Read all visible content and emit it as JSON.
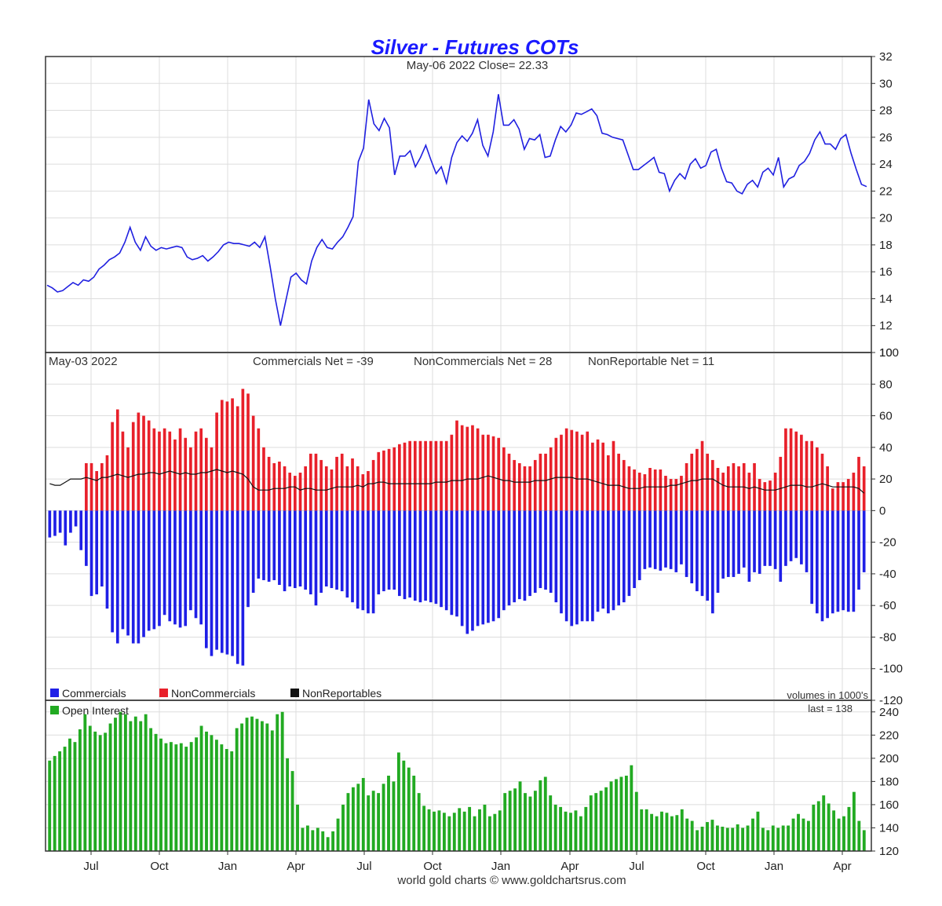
{
  "title": "Silver - Futures COTs",
  "footer": "world gold charts © www.goldchartsrus.com",
  "colors": {
    "price": "#2020e0",
    "commercials": "#1f1fe6",
    "noncommercials": "#e8202a",
    "nonreportables": "#111111",
    "open_interest": "#22aa22",
    "title": "#1a1aff"
  },
  "x_axis": {
    "labels": [
      "Jul",
      "Oct",
      "Jan",
      "Apr",
      "Jul",
      "Oct",
      "Jan",
      "Apr",
      "Jul",
      "Oct",
      "Jan",
      "Apr"
    ]
  },
  "chart_data": [
    {
      "type": "line",
      "title": "Silver - Futures COTs",
      "header": "May-06  2022   Close= 22.33",
      "ylim": [
        10,
        32
      ],
      "yticks": [
        10,
        12,
        14,
        16,
        18,
        20,
        22,
        24,
        26,
        28,
        30,
        32
      ],
      "axis_side": "right",
      "series": [
        {
          "values": [
            15.0,
            14.8,
            14.5,
            14.6,
            14.9,
            15.2,
            15.0,
            15.4,
            15.3,
            15.6,
            16.2,
            16.5,
            16.9,
            17.1,
            17.4,
            18.2,
            19.3,
            18.2,
            17.6,
            18.6,
            17.9,
            17.6,
            17.8,
            17.7,
            17.8,
            17.9,
            17.8,
            17.1,
            16.9,
            17.0,
            17.2,
            16.8,
            17.1,
            17.5,
            18.0,
            18.2,
            18.1,
            18.1,
            18.0,
            17.9,
            18.2,
            17.8,
            18.6,
            16.4,
            14.0,
            12.0,
            13.8,
            15.6,
            15.9,
            15.4,
            15.1,
            16.8,
            17.8,
            18.4,
            17.8,
            17.7,
            18.2,
            18.6,
            19.3,
            20.1,
            24.2,
            25.2,
            28.8,
            27.0,
            26.5,
            27.4,
            26.7,
            23.2,
            24.6,
            24.6,
            25.0,
            23.8,
            24.5,
            25.4,
            24.3,
            23.3,
            23.8,
            22.6,
            24.5,
            25.6,
            26.1,
            25.7,
            26.3,
            27.3,
            25.4,
            24.6,
            26.4,
            29.2,
            26.9,
            26.9,
            27.3,
            26.6,
            25.1,
            25.9,
            25.8,
            26.2,
            24.5,
            24.6,
            25.8,
            26.8,
            26.4,
            26.9,
            27.8,
            27.7,
            27.9,
            28.1,
            27.6,
            26.3,
            26.2,
            26.0,
            25.9,
            25.8,
            24.7,
            23.6,
            23.6,
            23.9,
            24.2,
            24.5,
            23.4,
            23.3,
            22.0,
            22.8,
            23.3,
            22.9,
            24.0,
            24.4,
            23.7,
            23.9,
            24.9,
            25.1,
            23.7,
            22.7,
            22.6,
            22.0,
            21.8,
            22.5,
            22.8,
            22.3,
            23.4,
            23.7,
            23.2,
            24.5,
            22.3,
            22.9,
            23.1,
            23.9,
            24.2,
            24.8,
            25.8,
            26.4,
            25.5,
            25.5,
            25.1,
            25.9,
            26.2,
            24.8,
            23.6,
            22.5,
            22.33
          ]
        }
      ]
    },
    {
      "type": "bar",
      "header": {
        "date": "May-03  2022",
        "commercials": "Commercials Net = -39",
        "noncommercials": "NonCommercials Net = 28",
        "nonreportable": "NonReportable Net = 11"
      },
      "ylim": [
        -120,
        100
      ],
      "yticks": [
        -120,
        -100,
        -80,
        -60,
        -40,
        -20,
        0,
        20,
        40,
        60,
        80,
        100
      ],
      "axis_side": "right",
      "legend_position": "bottom-left",
      "legend": [
        "Commercials",
        "NonCommercials",
        "NonReportables"
      ],
      "volume_note": "volumes in 1000's",
      "series": [
        {
          "name": "Commercials",
          "values": [
            -17,
            -16,
            -14,
            -22,
            -14,
            -10,
            -25,
            -35,
            -54,
            -53,
            -48,
            -62,
            -77,
            -84,
            -75,
            -79,
            -84,
            -84,
            -80,
            -76,
            -75,
            -73,
            -66,
            -70,
            -72,
            -74,
            -73,
            -63,
            -68,
            -72,
            -87,
            -92,
            -88,
            -90,
            -91,
            -92,
            -97,
            -98,
            -61,
            -52,
            -43,
            -44,
            -45,
            -44,
            -47,
            -51,
            -48,
            -49,
            -48,
            -50,
            -53,
            -60,
            -52,
            -48,
            -49,
            -50,
            -51,
            -55,
            -58,
            -62,
            -63,
            -65,
            -65,
            -53,
            -51,
            -50,
            -50,
            -54,
            -56,
            -55,
            -57,
            -58,
            -57,
            -58,
            -59,
            -61,
            -63,
            -66,
            -67,
            -73,
            -78,
            -76,
            -73,
            -72,
            -71,
            -70,
            -68,
            -63,
            -60,
            -58,
            -56,
            -57,
            -54,
            -52,
            -49,
            -50,
            -52,
            -58,
            -65,
            -70,
            -73,
            -72,
            -70,
            -70,
            -70,
            -64,
            -62,
            -65,
            -63,
            -60,
            -58,
            -54,
            -49,
            -44,
            -37,
            -36,
            -37,
            -38,
            -36,
            -37,
            -39,
            -34,
            -42,
            -46,
            -51,
            -54,
            -57,
            -65,
            -52,
            -43,
            -42,
            -42,
            -40,
            -36,
            -45,
            -39,
            -40,
            -35,
            -35,
            -37,
            -45,
            -35,
            -32,
            -30,
            -34,
            -39,
            -59,
            -65,
            -70,
            -68,
            -65,
            -64,
            -63,
            -64,
            -64,
            -50,
            -39
          ]
        },
        {
          "name": "NonCommercials",
          "values": [
            0,
            0,
            0,
            0,
            0,
            0,
            0,
            30,
            30,
            25,
            30,
            35,
            56,
            64,
            50,
            40,
            56,
            62,
            60,
            57,
            52,
            50,
            52,
            50,
            45,
            52,
            46,
            40,
            50,
            52,
            46,
            40,
            62,
            70,
            69,
            71,
            66,
            77,
            74,
            60,
            52,
            40,
            34,
            30,
            31,
            28,
            24,
            22,
            24,
            28,
            36,
            36,
            32,
            28,
            26,
            34,
            36,
            28,
            33,
            28,
            23,
            25,
            32,
            37,
            38,
            39,
            40,
            42,
            43,
            44,
            44,
            44,
            44,
            44,
            44,
            44,
            44,
            48,
            57,
            54,
            53,
            54,
            52,
            48,
            48,
            47,
            46,
            40,
            36,
            32,
            30,
            28,
            28,
            32,
            36,
            36,
            40,
            46,
            48,
            52,
            51,
            50,
            48,
            50,
            43,
            45,
            43,
            35,
            44,
            36,
            32,
            28,
            26,
            24,
            23,
            27,
            26,
            26,
            22,
            20,
            20,
            22,
            30,
            36,
            39,
            44,
            36,
            32,
            27,
            24,
            28,
            30,
            28,
            30,
            24,
            30,
            20,
            18,
            19,
            24,
            34,
            52,
            52,
            50,
            48,
            44,
            44,
            40,
            36,
            28,
            14,
            18,
            18,
            20,
            24,
            34,
            28
          ]
        },
        {
          "name": "NonReportables",
          "values": [
            17,
            16,
            16,
            18,
            20,
            20,
            20,
            21,
            20,
            19,
            21,
            21,
            22,
            23,
            22,
            21,
            22,
            23,
            23,
            24,
            24,
            23,
            24,
            25,
            24,
            23,
            24,
            23,
            23,
            24,
            24,
            25,
            26,
            25,
            24,
            25,
            24,
            23,
            20,
            15,
            13,
            13,
            13,
            14,
            14,
            14,
            15,
            15,
            13,
            14,
            14,
            13,
            13,
            13,
            14,
            15,
            15,
            15,
            15,
            16,
            15,
            17,
            17,
            18,
            18,
            17,
            17,
            17,
            17,
            17,
            17,
            17,
            17,
            17,
            18,
            18,
            18,
            19,
            19,
            19,
            20,
            20,
            20,
            21,
            22,
            21,
            20,
            19,
            19,
            18,
            18,
            18,
            18,
            19,
            19,
            19,
            20,
            21,
            21,
            21,
            21,
            20,
            20,
            20,
            19,
            18,
            17,
            16,
            16,
            16,
            15,
            14,
            14,
            14,
            15,
            15,
            15,
            15,
            15,
            16,
            16,
            17,
            18,
            19,
            19,
            20,
            20,
            20,
            18,
            16,
            15,
            15,
            15,
            15,
            14,
            15,
            14,
            13,
            13,
            13,
            14,
            15,
            16,
            16,
            16,
            15,
            15,
            16,
            17,
            16,
            15,
            15,
            15,
            15,
            15,
            14,
            11
          ]
        }
      ]
    },
    {
      "type": "bar",
      "legend": [
        "Open Interest"
      ],
      "last_label": "last = 138",
      "ylim": [
        120,
        250
      ],
      "yticks": [
        120,
        140,
        160,
        180,
        200,
        220,
        240
      ],
      "axis_side": "right",
      "series": [
        {
          "name": "Open Interest",
          "values": [
            198,
            202,
            206,
            210,
            217,
            214,
            225,
            238,
            228,
            223,
            220,
            222,
            230,
            235,
            240,
            238,
            232,
            236,
            232,
            238,
            226,
            221,
            217,
            213,
            214,
            212,
            213,
            210,
            214,
            218,
            228,
            223,
            220,
            216,
            212,
            208,
            206,
            226,
            230,
            235,
            236,
            234,
            232,
            230,
            224,
            238,
            240,
            200,
            189,
            160,
            140,
            142,
            138,
            140,
            137,
            132,
            137,
            148,
            160,
            170,
            175,
            178,
            183,
            168,
            172,
            170,
            178,
            185,
            180,
            205,
            198,
            192,
            185,
            170,
            159,
            156,
            154,
            155,
            153,
            150,
            153,
            157,
            154,
            158,
            150,
            156,
            160,
            150,
            152,
            155,
            170,
            172,
            174,
            180,
            170,
            167,
            172,
            181,
            184,
            168,
            160,
            158,
            154,
            153,
            155,
            150,
            158,
            168,
            170,
            172,
            175,
            180,
            182,
            184,
            185,
            194,
            171,
            156,
            156,
            152,
            150,
            154,
            153,
            150,
            151,
            156,
            148,
            146,
            138,
            141,
            145,
            147,
            142,
            141,
            140,
            140,
            143,
            140,
            142,
            148,
            154,
            140,
            138,
            142,
            140,
            142,
            142,
            148,
            152,
            148,
            146,
            160,
            163,
            168,
            161,
            155,
            148,
            150,
            158,
            171,
            146,
            138
          ]
        }
      ]
    }
  ]
}
